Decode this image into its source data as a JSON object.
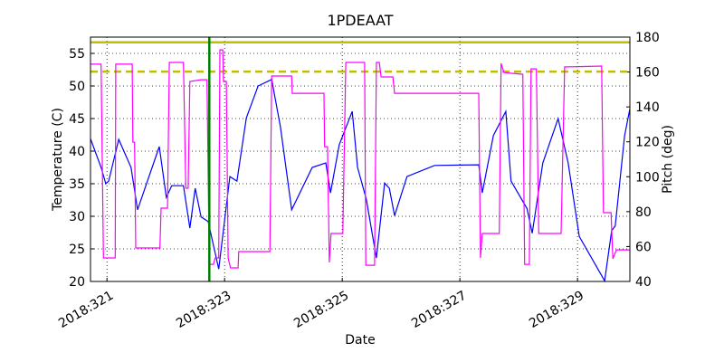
{
  "chart_data": {
    "type": "line",
    "title": "1PDEAAT",
    "x_label": "Date",
    "y_label": "Temperature (C)",
    "y2_label": "Pitch (deg)",
    "y2_color": "#ff00ff",
    "grid": true,
    "xlim": [
      320.72,
      329.89
    ],
    "xticks": [
      {
        "value": 321,
        "label": "2018:321"
      },
      {
        "value": 323,
        "label": "2018:323"
      },
      {
        "value": 325,
        "label": "2018:325"
      },
      {
        "value": 327,
        "label": "2018:327"
      },
      {
        "value": 329,
        "label": "2018:329"
      }
    ],
    "ylim": [
      20,
      57.5
    ],
    "yticks": [
      20,
      25,
      30,
      35,
      40,
      45,
      50,
      55
    ],
    "y2lim": [
      40,
      180
    ],
    "y2ticks": [
      40,
      60,
      80,
      100,
      120,
      140,
      160,
      180
    ],
    "hlines": [
      {
        "value": 56.7,
        "color": "#bfbf00",
        "dashed": false
      },
      {
        "value": 52.2,
        "color": "#bfbf00",
        "dashed": true
      }
    ],
    "vlines": [
      {
        "value": 322.74,
        "color": "#008000"
      }
    ],
    "series": [
      {
        "color": "#0000ff",
        "x": [
          320.72,
          320.9,
          320.98,
          321.03,
          321.2,
          321.41,
          321.52,
          321.89,
          322.01,
          322.1,
          322.3,
          322.41,
          322.5,
          322.6,
          322.72,
          322.9,
          323.09,
          323.21,
          323.37,
          323.57,
          323.8,
          323.95,
          324.14,
          324.49,
          324.72,
          324.8,
          324.95,
          325.17,
          325.26,
          325.41,
          325.58,
          325.72,
          325.8,
          325.89,
          326.1,
          326.57,
          327.32,
          327.38,
          327.57,
          327.78,
          327.87,
          328.14,
          328.23,
          328.41,
          328.67,
          328.84,
          329.03,
          329.46,
          329.58,
          329.64,
          329.8,
          329.89
        ],
        "values": [
          41.9,
          37.5,
          35,
          35.4,
          41.8,
          37.5,
          31,
          40.7,
          32.9,
          34.7,
          34.7,
          28.2,
          34.3,
          29.9,
          29.2,
          21.9,
          36.1,
          35.4,
          45.1,
          50,
          51,
          43.7,
          31,
          37.5,
          38.2,
          33.6,
          41,
          46.1,
          37.5,
          32.6,
          23.6,
          35.1,
          34.3,
          30.1,
          36.1,
          37.8,
          37.9,
          33.6,
          42.4,
          46.1,
          35.4,
          31.2,
          27.4,
          38.2,
          45,
          38.2,
          26.9,
          20.1,
          27.8,
          28.5,
          42.4,
          46.5
        ]
      },
      {
        "color": "#ff00ff",
        "axis": "y2",
        "x": [
          320.72,
          320.9,
          320.94,
          321.14,
          321.15,
          321.43,
          321.44,
          321.47,
          321.49,
          321.9,
          321.92,
          322.03,
          322.06,
          322.3,
          322.34,
          322.38,
          322.41,
          322.6,
          322.7,
          322.74,
          322.81,
          322.84,
          322.9,
          322.92,
          322.97,
          322.98,
          323.03,
          323.06,
          323.1,
          323.23,
          323.24,
          323.77,
          323.8,
          324.14,
          324.15,
          324.69,
          324.7,
          324.75,
          324.78,
          324.81,
          325.01,
          325.06,
          325.38,
          325.4,
          325.55,
          325.58,
          325.63,
          325.66,
          325.86,
          325.89,
          327.32,
          327.35,
          327.38,
          327.67,
          327.7,
          327.75,
          328.07,
          328.1,
          328.18,
          328.21,
          328.3,
          328.34,
          328.72,
          328.78,
          329.41,
          329.44,
          329.57,
          329.6,
          329.66,
          329.89
        ],
        "values": [
          164.5,
          164.5,
          53.5,
          53.5,
          164.5,
          164.5,
          119.8,
          119.8,
          59.2,
          59.2,
          82,
          82,
          165.5,
          165.5,
          93.4,
          93.4,
          154.6,
          155.6,
          155.6,
          49.8,
          49.8,
          53.5,
          53.5,
          172.7,
          172.7,
          154.6,
          154.6,
          53.5,
          47.8,
          47.8,
          57.1,
          57.1,
          157.7,
          157.7,
          147.8,
          147.8,
          117.2,
          117.2,
          50.9,
          67.5,
          67.5,
          165.5,
          165.5,
          49.3,
          49.3,
          165.5,
          165.5,
          157.2,
          157.2,
          147.8,
          147.8,
          53.5,
          67.5,
          67.5,
          164.9,
          159.7,
          158.7,
          49.8,
          49.8,
          161.8,
          161.8,
          67.5,
          67.5,
          162.9,
          163.4,
          79.4,
          79.4,
          53,
          58.1,
          58.1
        ]
      }
    ]
  }
}
